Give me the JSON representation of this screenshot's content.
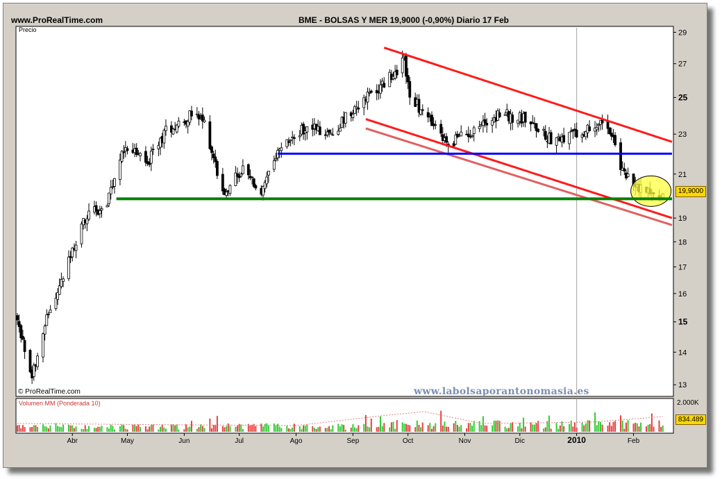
{
  "header": {
    "site": "www.ProRealTime.com",
    "ticker_line": "BME - BOLSAS Y MER    19,9000 (-0,90%)    Diario  17 Feb"
  },
  "price_panel": {
    "title": "Precio",
    "credit": "© ProRealTime.com",
    "watermark": "www.labolsaporantonomasia.es"
  },
  "volume_panel": {
    "title": "Volumen MM (Ponderada 10)",
    "max_label": "2.000K",
    "last_label": "834.489"
  },
  "last_price_label": "19,9000",
  "colors": {
    "resistance": "#ff1a1a",
    "channel": "#e06060",
    "blue": "#0000ff",
    "green": "#008000",
    "circle": "#ffff40",
    "up_volume": "#33cc33",
    "down_volume": "#e84040"
  },
  "chart_data": {
    "type": "candlestick",
    "scale": "log",
    "ylim": [
      12.7,
      29.3
    ],
    "y_ticks": [
      13,
      14,
      15,
      16,
      17,
      18,
      19,
      21,
      23,
      25,
      27,
      29
    ],
    "y_tick_labels": [
      "13",
      "14",
      "15",
      "16",
      "17",
      "18",
      "19",
      "21",
      "23",
      "25",
      "27",
      "29"
    ],
    "x_range": [
      "2009-03-02",
      "2010-02-22"
    ],
    "x_ticks": [
      {
        "date": "2009-04-01",
        "label": "Abr"
      },
      {
        "date": "2009-05-01",
        "label": "May"
      },
      {
        "date": "2009-06-01",
        "label": "Jun"
      },
      {
        "date": "2009-07-01",
        "label": "Jul"
      },
      {
        "date": "2009-08-01",
        "label": "Ago"
      },
      {
        "date": "2009-09-01",
        "label": "Sep"
      },
      {
        "date": "2009-10-01",
        "label": "Oct"
      },
      {
        "date": "2009-11-01",
        "label": "Nov"
      },
      {
        "date": "2009-12-01",
        "label": "Dic"
      },
      {
        "date": "2010-01-01",
        "label": "2010"
      },
      {
        "date": "2010-02-01",
        "label": "Feb"
      }
    ],
    "close_path": [
      {
        "date": "2009-03-02",
        "close": 15.0
      },
      {
        "date": "2009-03-10",
        "close": 13.2
      },
      {
        "date": "2009-03-16",
        "close": 14.8
      },
      {
        "date": "2009-03-25",
        "close": 16.2
      },
      {
        "date": "2009-04-08",
        "close": 19.0
      },
      {
        "date": "2009-04-20",
        "close": 19.6
      },
      {
        "date": "2009-04-30",
        "close": 22.5
      },
      {
        "date": "2009-05-12",
        "close": 21.5
      },
      {
        "date": "2009-05-22",
        "close": 23.2
      },
      {
        "date": "2009-06-05",
        "close": 24.0
      },
      {
        "date": "2009-06-12",
        "close": 23.6
      },
      {
        "date": "2009-06-22",
        "close": 20.2
      },
      {
        "date": "2009-07-03",
        "close": 21.2
      },
      {
        "date": "2009-07-13",
        "close": 20.1
      },
      {
        "date": "2009-07-24",
        "close": 22.3
      },
      {
        "date": "2009-08-07",
        "close": 23.4
      },
      {
        "date": "2009-08-20",
        "close": 23.0
      },
      {
        "date": "2009-09-03",
        "close": 24.6
      },
      {
        "date": "2009-09-14",
        "close": 25.4
      },
      {
        "date": "2009-09-24",
        "close": 26.5
      },
      {
        "date": "2009-09-29",
        "close": 27.3
      },
      {
        "date": "2009-10-02",
        "close": 25.1
      },
      {
        "date": "2009-10-12",
        "close": 23.8
      },
      {
        "date": "2009-10-22",
        "close": 22.5
      },
      {
        "date": "2009-11-05",
        "close": 23.2
      },
      {
        "date": "2009-11-20",
        "close": 24.1
      },
      {
        "date": "2009-12-04",
        "close": 23.8
      },
      {
        "date": "2009-12-18",
        "close": 22.8
      },
      {
        "date": "2010-01-05",
        "close": 23.0
      },
      {
        "date": "2010-01-15",
        "close": 23.9
      },
      {
        "date": "2010-01-21",
        "close": 22.6
      },
      {
        "date": "2010-01-26",
        "close": 21.1
      },
      {
        "date": "2010-02-04",
        "close": 20.3
      },
      {
        "date": "2010-02-11",
        "close": 20.2
      },
      {
        "date": "2010-02-17",
        "close": 19.9
      }
    ],
    "trend_lines": [
      {
        "name": "upper",
        "from": {
          "date": "2009-09-18",
          "value": 28.0
        },
        "to": {
          "date": "2010-02-22",
          "value": 22.6
        }
      },
      {
        "name": "lower",
        "from": {
          "date": "2009-09-08",
          "value": 23.8
        },
        "to": {
          "date": "2010-02-22",
          "value": 19.0
        }
      },
      {
        "name": "lower-parallel",
        "from": {
          "date": "2009-09-08",
          "value": 23.3
        },
        "to": {
          "date": "2010-02-22",
          "value": 18.7
        }
      },
      {
        "name": "blue",
        "from": {
          "date": "2009-07-22",
          "value": 22.0
        },
        "to": {
          "date": "2010-02-22",
          "value": 22.0
        }
      },
      {
        "name": "green",
        "from": {
          "date": "2009-04-25",
          "value": 19.85
        },
        "to": {
          "date": "2010-02-22",
          "value": 19.85
        }
      }
    ],
    "highlight": {
      "date": "2010-02-09",
      "value": 20.2
    },
    "vertical_marker": "2010-01-01",
    "volume": {
      "ylim": [
        0,
        2000
      ],
      "unit": "K",
      "last": 834.489
    }
  }
}
